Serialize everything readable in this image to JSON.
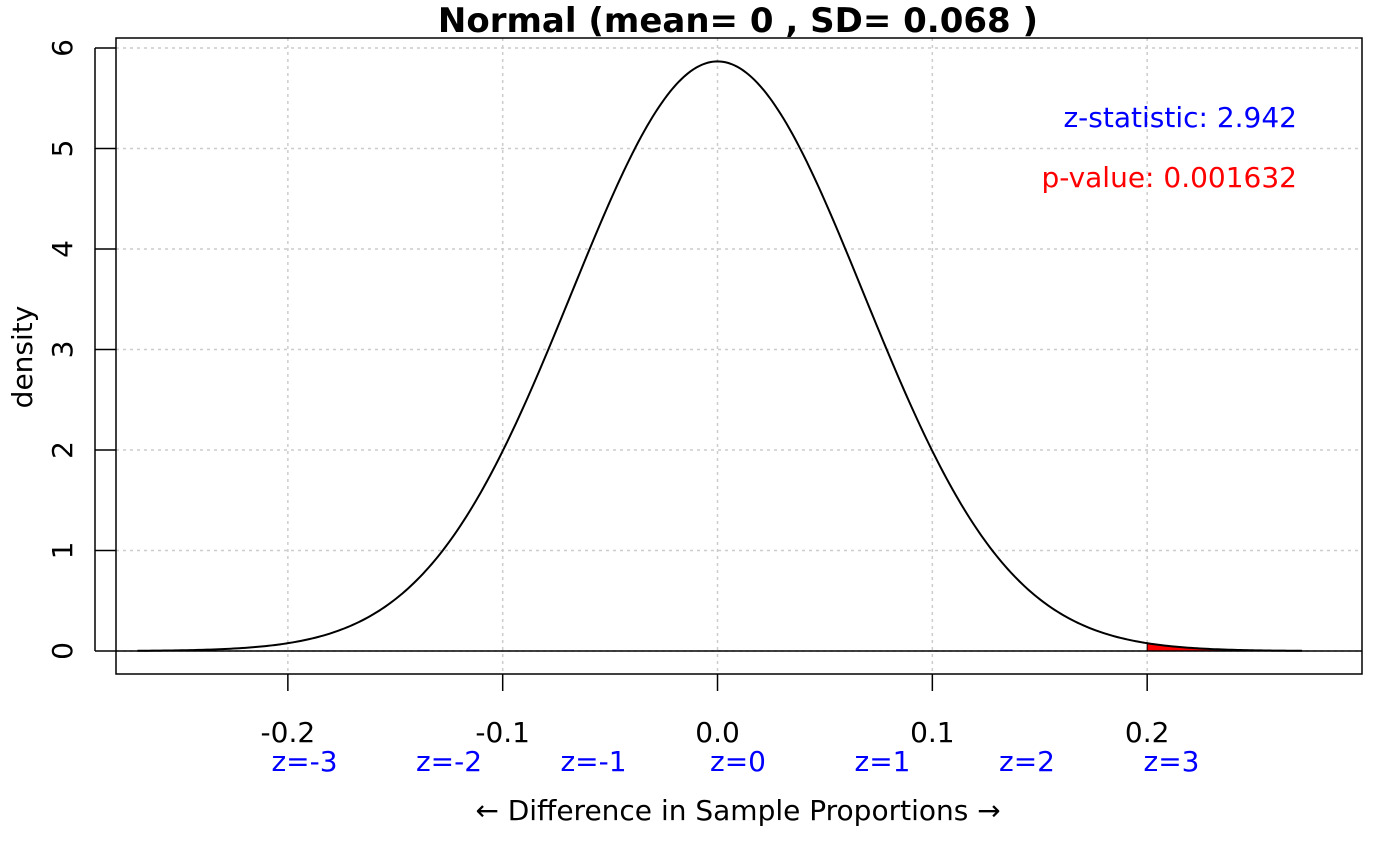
{
  "chart_data": {
    "type": "area",
    "distribution": "normal",
    "mean": 0,
    "sd": 0.068,
    "title": "Normal (mean= 0 , SD= 0.068 )",
    "xlabel": "← Difference in Sample Proportions →",
    "ylabel": "density",
    "xlim": [
      -0.28,
      0.3
    ],
    "ylim": [
      0,
      6
    ],
    "curve_range": [
      -0.27,
      0.272
    ],
    "x_ticks": [
      {
        "value": -0.2,
        "label": "-0.2"
      },
      {
        "value": -0.1,
        "label": "-0.1"
      },
      {
        "value": 0.0,
        "label": "0.0"
      },
      {
        "value": 0.1,
        "label": "0.1"
      },
      {
        "value": 0.2,
        "label": "0.2"
      }
    ],
    "y_ticks": [
      {
        "value": 0,
        "label": "0"
      },
      {
        "value": 1,
        "label": "1"
      },
      {
        "value": 2,
        "label": "2"
      },
      {
        "value": 3,
        "label": "3"
      },
      {
        "value": 4,
        "label": "4"
      },
      {
        "value": 5,
        "label": "5"
      },
      {
        "value": 6,
        "label": "6"
      }
    ],
    "z_labels": [
      {
        "z": -3,
        "label": "z=-3"
      },
      {
        "z": -2,
        "label": "z=-2"
      },
      {
        "z": -1,
        "label": "z=-1"
      },
      {
        "z": 0,
        "label": "z=0"
      },
      {
        "z": 1,
        "label": "z=1"
      },
      {
        "z": 2,
        "label": "z=2"
      },
      {
        "z": 3,
        "label": "z=3"
      }
    ],
    "shaded_region": {
      "from": 0.2,
      "to": 0.272,
      "color": "#ff0000"
    },
    "grid": true,
    "annotations": {
      "z_statistic": "z-statistic: 2.942",
      "p_value": "p-value: 0.001632"
    },
    "colors": {
      "curve": "#000000",
      "z_label": "#0000ff",
      "z_stat": "#0000ff",
      "p_value": "#ff0000",
      "grid": "#cccccc",
      "shade": "#ff0000"
    }
  }
}
